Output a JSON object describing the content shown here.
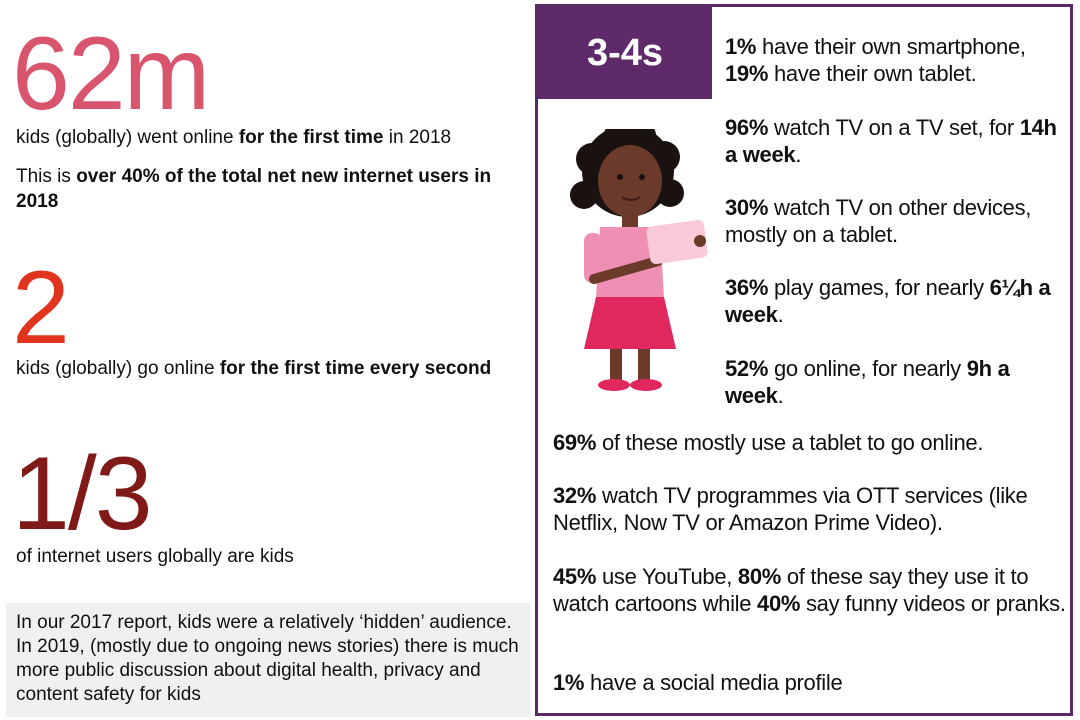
{
  "left": {
    "stat1": {
      "big": "62m",
      "line_pre": "kids (globally) went online ",
      "line_bold": "for the first time",
      "line_post": " in 2018"
    },
    "stat1_extra": {
      "pre": "This is ",
      "bold": "over 40% of the total net new internet users in 2018"
    },
    "stat2": {
      "big": "2",
      "pre": "kids (globally) go online ",
      "bold": "for the first time every second"
    },
    "stat3": {
      "big": "1/3",
      "text": "of internet users globally are kids"
    },
    "note": "In our 2017 report, kids were a relatively ‘hidden’ audience. In 2019, (mostly due to ongoing news stories) there is much more public discussion about digital health, privacy and content safety for kids"
  },
  "panel": {
    "age": "3-4s",
    "items": [
      {
        "b1": "1%",
        "t1": " have their own smartphone,"
      },
      {
        "b1": "19%",
        "t1": " have their own tablet."
      },
      {
        "b1": "96%",
        "t1": " watch TV on a TV set, for ",
        "b2": "14h a week",
        "t2": "."
      },
      {
        "b1": "30%",
        "t1": " watch TV on other devices, mostly on a tablet."
      },
      {
        "b1": "36%",
        "t1": " play games, for nearly ",
        "b2": "6¼h a week",
        "t2": "."
      },
      {
        "b1": "52%",
        "t1": " go online, for nearly ",
        "b2": "9h a week",
        "t2": "."
      },
      {
        "b1": "69%",
        "t1": " of these mostly use a tablet to go online."
      },
      {
        "b1": "32%",
        "t1": " watch TV programmes via OTT services (like Netflix, Now TV or Amazon Prime Video)."
      },
      {
        "b1": "45%",
        "t1": " use YouTube, ",
        "b2": "80%",
        "t2": " of these say they use it to watch cartoons while ",
        "b3": "40%",
        "t3": " say funny videos or pranks."
      },
      {
        "b1": "1%",
        "t1": " have a social media profile"
      }
    ]
  },
  "colors": {
    "stat1": "#d9556d",
    "stat2": "#e0341f",
    "stat3": "#7f1a18",
    "panel": "#5e2a6a"
  },
  "icons": {
    "illustration": "girl-with-tablet-illustration"
  }
}
